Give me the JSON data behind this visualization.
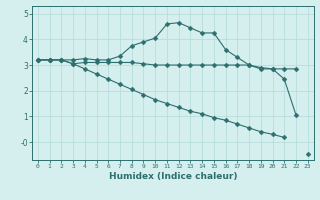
{
  "xlabel": "Humidex (Indice chaleur)",
  "x": [
    0,
    1,
    2,
    3,
    4,
    5,
    6,
    7,
    8,
    9,
    10,
    11,
    12,
    13,
    14,
    15,
    16,
    17,
    18,
    19,
    20,
    21,
    22,
    23
  ],
  "line1": [
    3.2,
    3.2,
    3.2,
    3.2,
    3.25,
    3.2,
    3.2,
    3.35,
    3.75,
    3.9,
    4.05,
    4.6,
    4.65,
    4.45,
    4.25,
    4.25,
    3.6,
    3.3,
    3.0,
    2.85,
    2.85,
    2.45,
    1.05,
    null
  ],
  "line2": [
    3.2,
    3.2,
    3.2,
    3.05,
    3.1,
    3.1,
    3.1,
    3.1,
    3.1,
    3.05,
    3.0,
    3.0,
    3.0,
    3.0,
    3.0,
    3.0,
    3.0,
    3.0,
    3.0,
    2.9,
    2.85,
    2.85,
    2.85,
    null
  ],
  "line3": [
    3.2,
    3.2,
    3.2,
    3.05,
    2.85,
    2.65,
    2.45,
    2.25,
    2.05,
    1.85,
    1.65,
    1.5,
    1.35,
    1.2,
    1.1,
    0.95,
    0.85,
    0.7,
    0.55,
    0.4,
    0.3,
    0.18,
    null,
    -0.45
  ],
  "line_color": "#2e6e6e",
  "bg_color": "#d5efef",
  "grid_color": "#b8dcdc",
  "ylim": [
    -0.7,
    5.3
  ],
  "xlim": [
    -0.5,
    23.5
  ],
  "markersize": 2.5
}
